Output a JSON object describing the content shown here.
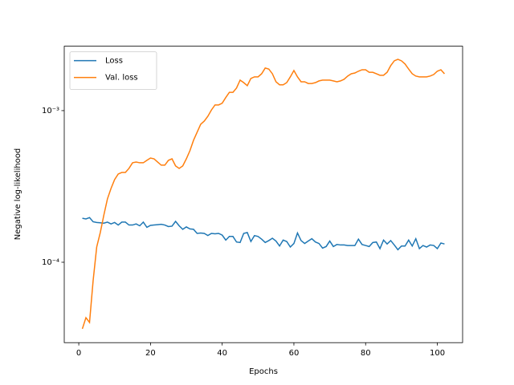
{
  "chart_data": {
    "type": "line",
    "xlabel": "Epochs",
    "ylabel": "Negative log-likelihood",
    "log_y": true,
    "legend": "upper left",
    "xlim": [
      -4.05,
      107.05
    ],
    "ylim": [
      2.95e-05,
      0.00266
    ],
    "xticks": [
      0,
      20,
      40,
      60,
      80,
      100
    ],
    "yticks": [
      {
        "value": 0.0001,
        "label": "10⁻⁴"
      },
      {
        "value": 0.001,
        "label": "10⁻³"
      }
    ],
    "x": [
      1,
      2,
      3,
      4,
      5,
      6,
      7,
      8,
      9,
      10,
      11,
      12,
      13,
      14,
      15,
      16,
      17,
      18,
      19,
      20,
      21,
      22,
      23,
      24,
      25,
      26,
      27,
      28,
      29,
      30,
      31,
      32,
      33,
      34,
      35,
      36,
      37,
      38,
      39,
      40,
      41,
      42,
      43,
      44,
      45,
      46,
      47,
      48,
      49,
      50,
      51,
      52,
      53,
      54,
      55,
      56,
      57,
      58,
      59,
      60,
      61,
      62,
      63,
      64,
      65,
      66,
      67,
      68,
      69,
      70,
      71,
      72,
      73,
      74,
      75,
      76,
      77,
      78,
      79,
      80,
      81,
      82,
      83,
      84,
      85,
      86,
      87,
      88,
      89,
      90,
      91,
      92,
      93,
      94,
      95,
      96,
      97,
      98,
      99,
      100,
      101,
      102
    ],
    "series": [
      {
        "name": "Loss",
        "color": "#1f77b4",
        "values": [
          0.000195,
          0.000193,
          0.000197,
          0.000185,
          0.000183,
          0.000182,
          0.000181,
          0.000184,
          0.000179,
          0.000183,
          0.000176,
          0.000184,
          0.000184,
          0.000176,
          0.000176,
          0.000179,
          0.000174,
          0.000184,
          0.00017,
          0.000175,
          0.000176,
          0.000177,
          0.000178,
          0.000176,
          0.000172,
          0.000173,
          0.000186,
          0.000174,
          0.000165,
          0.000171,
          0.000166,
          0.000165,
          0.000155,
          0.000156,
          0.000155,
          0.00015,
          0.000155,
          0.000154,
          0.000155,
          0.000151,
          0.00014,
          0.000148,
          0.000148,
          0.000136,
          0.000135,
          0.000155,
          0.000157,
          0.000137,
          0.00015,
          0.000148,
          0.000142,
          0.000135,
          0.000139,
          0.000144,
          0.000138,
          0.000128,
          0.00014,
          0.000137,
          0.000126,
          0.000133,
          0.000156,
          0.000139,
          0.000133,
          0.000138,
          0.000143,
          0.000136,
          0.000133,
          0.000124,
          0.000127,
          0.000138,
          0.000127,
          0.000131,
          0.00013,
          0.00013,
          0.000129,
          0.000129,
          0.000129,
          0.000142,
          0.000131,
          0.000129,
          0.000127,
          0.000135,
          0.000136,
          0.000123,
          0.00014,
          0.000132,
          0.000139,
          0.00013,
          0.000121,
          0.000128,
          0.000128,
          0.00014,
          0.000128,
          0.000143,
          0.000123,
          0.000129,
          0.000126,
          0.00013,
          0.000129,
          0.000123,
          0.000134,
          0.000132
        ]
      },
      {
        "name": "Val. loss",
        "color": "#ff7f0e",
        "values": [
          3.64e-05,
          4.31e-05,
          4.01e-05,
          7.55e-05,
          0.000126,
          0.000157,
          0.000205,
          0.000262,
          0.000307,
          0.000351,
          0.000382,
          0.000391,
          0.000391,
          0.000416,
          0.000453,
          0.000458,
          0.000453,
          0.000453,
          0.00047,
          0.000487,
          0.000481,
          0.000458,
          0.000437,
          0.000437,
          0.00047,
          0.000481,
          0.000432,
          0.000416,
          0.000432,
          0.000481,
          0.000544,
          0.000637,
          0.00072,
          0.000813,
          0.000853,
          0.000918,
          0.00101,
          0.00109,
          0.00109,
          0.00112,
          0.00122,
          0.00132,
          0.00132,
          0.00141,
          0.00159,
          0.00153,
          0.00146,
          0.00163,
          0.00167,
          0.00167,
          0.00175,
          0.00191,
          0.00188,
          0.00175,
          0.00155,
          0.00148,
          0.00148,
          0.00153,
          0.00167,
          0.00184,
          0.00167,
          0.00155,
          0.00155,
          0.00151,
          0.00151,
          0.00153,
          0.00157,
          0.00159,
          0.00159,
          0.00159,
          0.00157,
          0.00155,
          0.00157,
          0.00161,
          0.00169,
          0.00175,
          0.00177,
          0.00182,
          0.00186,
          0.00186,
          0.00179,
          0.00179,
          0.00175,
          0.00171,
          0.00171,
          0.00179,
          0.00198,
          0.00213,
          0.00218,
          0.00213,
          0.00203,
          0.00188,
          0.00175,
          0.00169,
          0.00167,
          0.00167,
          0.00167,
          0.00169,
          0.00173,
          0.00182,
          0.00186,
          0.00175
        ]
      }
    ]
  }
}
